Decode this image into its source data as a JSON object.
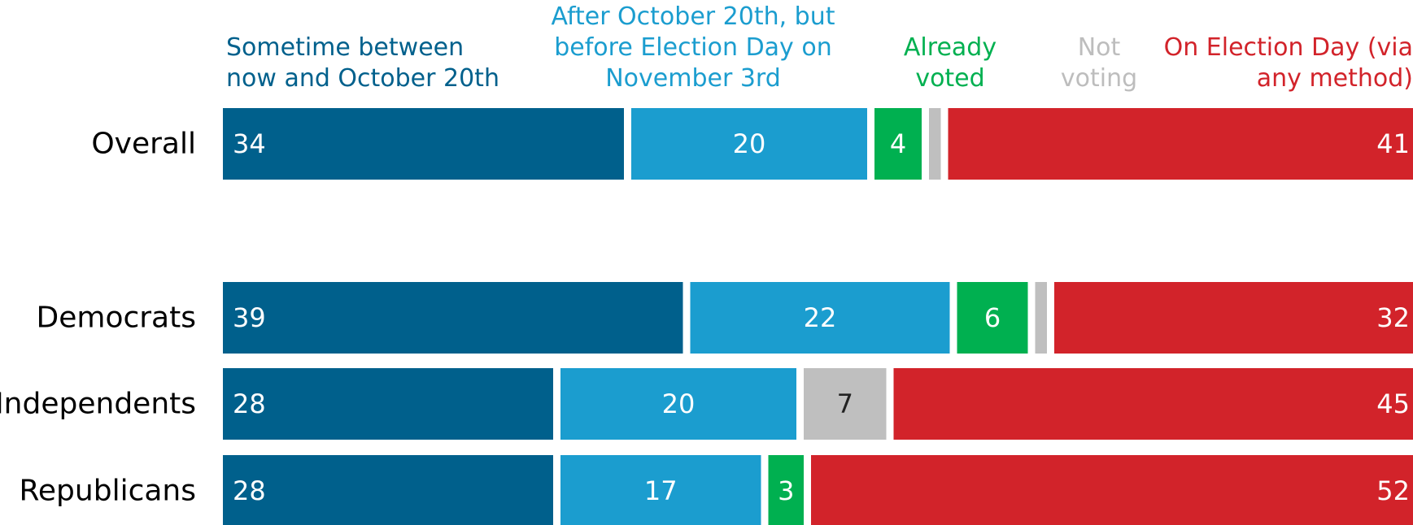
{
  "chart_data": {
    "type": "stacked_bar_horizontal",
    "categories": [
      "Overall",
      "Democrats",
      "Independents",
      "Republicans"
    ],
    "series": [
      {
        "name": "Sometime between now and October 20th",
        "color": "#00608c",
        "values": [
          34,
          39,
          28,
          28
        ]
      },
      {
        "name": "After October 20th, but before Election Day on November 3rd",
        "color": "#1b9dcf",
        "values": [
          20,
          22,
          20,
          17
        ]
      },
      {
        "name": "Already voted",
        "color": "#00b050",
        "values": [
          4,
          6,
          0,
          3
        ]
      },
      {
        "name": "Not voting",
        "color": "#bfbfbf",
        "values": [
          1,
          1,
          7,
          0
        ]
      },
      {
        "name": "On Election Day (via any method)",
        "color": "#d2232a",
        "values": [
          41,
          32,
          45,
          52
        ]
      }
    ]
  }
}
